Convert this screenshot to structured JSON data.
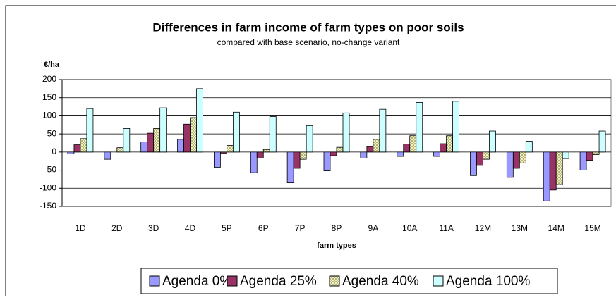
{
  "chart_data": {
    "type": "bar",
    "title": "Differences in farm income of farm types on poor soils",
    "subtitle": "compared with base scenario, no-change variant",
    "y_label": "€/ha",
    "x_label": "farm types",
    "categories": [
      "1D",
      "2D",
      "3D",
      "4D",
      "5P",
      "6P",
      "7P",
      "8P",
      "9A",
      "10A",
      "11A",
      "12M",
      "13M",
      "14M",
      "15M"
    ],
    "series": [
      {
        "name": "Agenda 0%",
        "color": "#9999ff",
        "values": [
          -5,
          -20,
          28,
          35,
          -42,
          -57,
          -85,
          -52,
          -17,
          -12,
          -12,
          -65,
          -70,
          -135,
          -50
        ]
      },
      {
        "name": "Agenda 25%",
        "color": "#993366",
        "values": [
          20,
          0,
          52,
          77,
          -3,
          -17,
          -45,
          -10,
          15,
          22,
          23,
          -37,
          -45,
          -105,
          -23
        ]
      },
      {
        "name": "Agenda 40%",
        "color": "#ffffcc",
        "pattern": "crosshatch",
        "values": [
          37,
          12,
          65,
          95,
          18,
          7,
          -20,
          13,
          35,
          45,
          45,
          -20,
          -30,
          -90,
          -7
        ]
      },
      {
        "name": "Agenda 100%",
        "color": "#ccffff",
        "values": [
          120,
          65,
          122,
          175,
          110,
          98,
          73,
          108,
          118,
          137,
          140,
          58,
          30,
          -18,
          58
        ]
      }
    ],
    "ylim": [
      -150,
      200
    ],
    "yticks": [
      -150,
      -100,
      -50,
      0,
      50,
      100,
      150,
      200
    ],
    "grid": true,
    "legend": "bottom"
  }
}
